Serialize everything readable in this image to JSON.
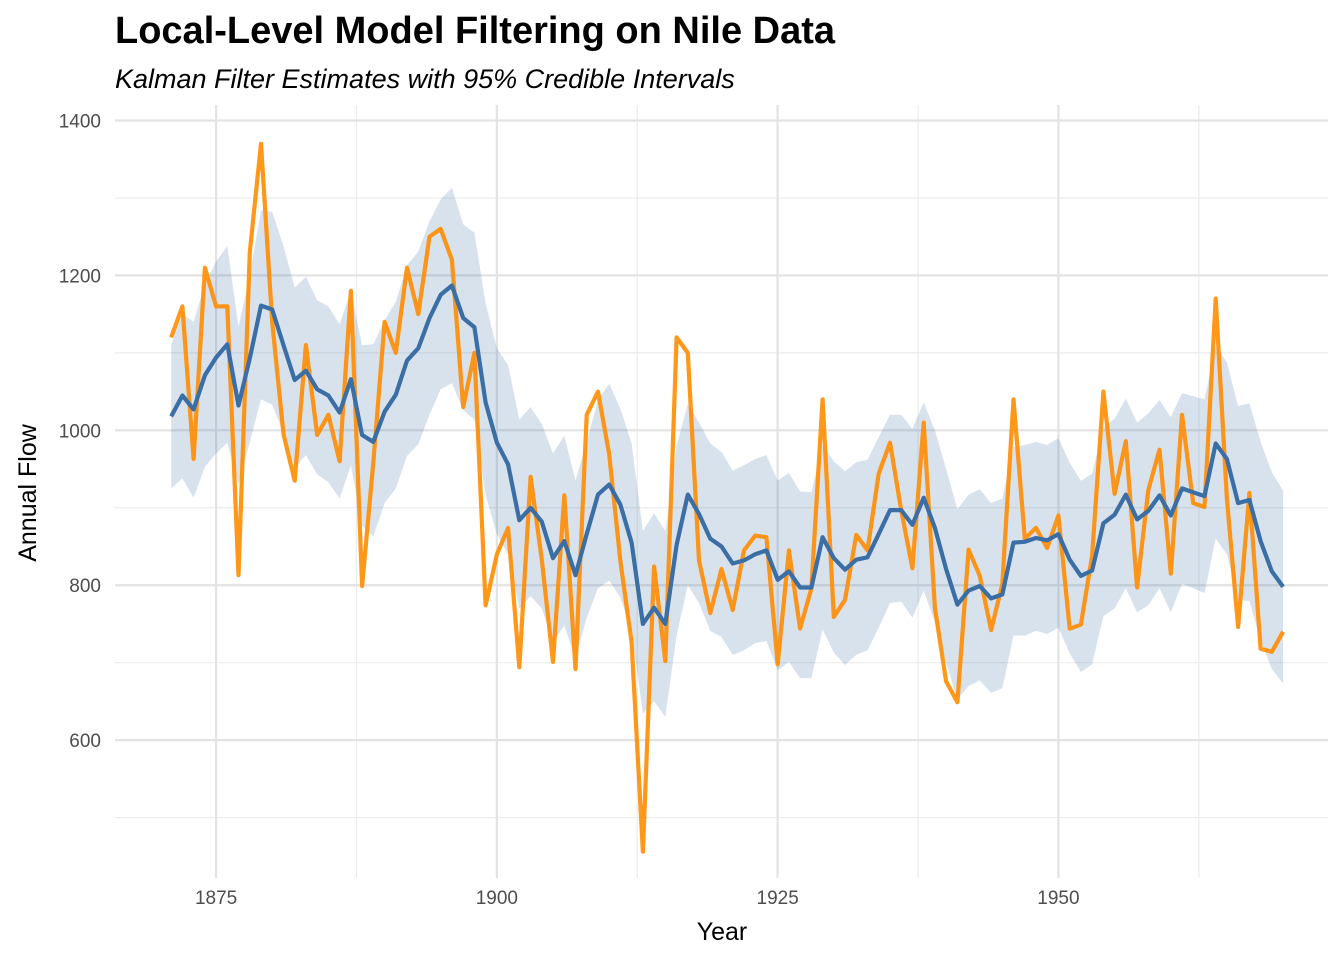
{
  "chart_data": {
    "type": "line",
    "title": "Local-Level Model Filtering on Nile Data",
    "subtitle": "Kalman Filter Estimates with 95% Credible Intervals",
    "xlabel": "Year",
    "ylabel": "Annual Flow",
    "xlim": [
      1866,
      1974
    ],
    "ylim": [
      422,
      1420
    ],
    "x_ticks": [
      1875,
      1900,
      1925,
      1950
    ],
    "y_ticks": [
      600,
      800,
      1000,
      1200,
      1400
    ],
    "grid": true,
    "x": [
      1871,
      1872,
      1873,
      1874,
      1875,
      1876,
      1877,
      1878,
      1879,
      1880,
      1881,
      1882,
      1883,
      1884,
      1885,
      1886,
      1887,
      1888,
      1889,
      1890,
      1891,
      1892,
      1893,
      1894,
      1895,
      1896,
      1897,
      1898,
      1899,
      1900,
      1901,
      1902,
      1903,
      1904,
      1905,
      1906,
      1907,
      1908,
      1909,
      1910,
      1911,
      1912,
      1913,
      1914,
      1915,
      1916,
      1917,
      1918,
      1919,
      1920,
      1921,
      1922,
      1923,
      1924,
      1925,
      1926,
      1927,
      1928,
      1929,
      1930,
      1931,
      1932,
      1933,
      1934,
      1935,
      1936,
      1937,
      1938,
      1939,
      1940,
      1941,
      1942,
      1943,
      1944,
      1945,
      1946,
      1947,
      1948,
      1949,
      1950,
      1951,
      1952,
      1953,
      1954,
      1955,
      1956,
      1957,
      1958,
      1959,
      1960,
      1961,
      1962,
      1963,
      1964,
      1965,
      1966,
      1967,
      1968,
      1969,
      1970
    ],
    "series": [
      {
        "color": "#FF8C00",
        "values": [
          1120,
          1160,
          963,
          1210,
          1160,
          1160,
          813,
          1230,
          1370,
          1140,
          995,
          935,
          1110,
          994,
          1020,
          960,
          1180,
          799,
          958,
          1140,
          1100,
          1210,
          1150,
          1250,
          1260,
          1220,
          1030,
          1100,
          774,
          840,
          874,
          694,
          940,
          833,
          701,
          916,
          692,
          1020,
          1050,
          969,
          831,
          726,
          456,
          824,
          702,
          1120,
          1100,
          832,
          764,
          821,
          768,
          845,
          864,
          862,
          698,
          845,
          744,
          796,
          1040,
          759,
          781,
          865,
          845,
          944,
          984,
          897,
          822,
          1010,
          771,
          676,
          649,
          846,
          812,
          742,
          801,
          1040,
          860,
          874,
          848,
          890,
          744,
          749,
          838,
          1050,
          918,
          986,
          797,
          923,
          975,
          815,
          1020,
          906,
          901,
          1170,
          912,
          746,
          919,
          718,
          714,
          740
        ]
      },
      {
        "color": "#3A6EA5",
        "values": [
          1018,
          1045,
          1027,
          1071,
          1094,
          1111,
          1032,
          1093,
          1161,
          1156,
          1110,
          1065,
          1077,
          1053,
          1045,
          1023,
          1066,
          994,
          985,
          1024,
          1046,
          1090,
          1106,
          1145,
          1175,
          1187,
          1145,
          1133,
          1036,
          984,
          956,
          884,
          900,
          882,
          835,
          857,
          813,
          866,
          917,
          930,
          904,
          855,
          750,
          771,
          750,
          852,
          917,
          892,
          860,
          850,
          828,
          832,
          840,
          845,
          807,
          818,
          797,
          797,
          862,
          835,
          820,
          833,
          836,
          866,
          897,
          897,
          878,
          913,
          874,
          821,
          775,
          793,
          799,
          783,
          788,
          855,
          856,
          861,
          858,
          866,
          833,
          812,
          819,
          880,
          891,
          917,
          885,
          896,
          916,
          890,
          925,
          920,
          915,
          983,
          963,
          906,
          910,
          857,
          818,
          798
        ]
      }
    ],
    "interval": {
      "lower": [
        925,
        938,
        913,
        953,
        970,
        984,
        930,
        985,
        1040,
        1033,
        997,
        952,
        968,
        943,
        933,
        912,
        955,
        877,
        863,
        906,
        925,
        967,
        982,
        1020,
        1053,
        1061,
        1026,
        1014,
        916,
        866,
        840,
        770,
        786,
        770,
        727,
        748,
        705,
        758,
        796,
        806,
        784,
        741,
        634,
        650,
        630,
        735,
        800,
        777,
        741,
        733,
        710,
        716,
        725,
        728,
        690,
        701,
        680,
        680,
        743,
        713,
        697,
        710,
        716,
        745,
        777,
        779,
        758,
        793,
        752,
        700,
        652,
        670,
        677,
        661,
        667,
        735,
        735,
        741,
        737,
        745,
        712,
        688,
        698,
        760,
        770,
        796,
        765,
        774,
        796,
        765,
        802,
        796,
        790,
        860,
        840,
        780,
        780,
        728,
        692,
        673
      ],
      "upper": [
        1110,
        1150,
        1140,
        1189,
        1218,
        1238,
        1134,
        1201,
        1284,
        1282,
        1238,
        1184,
        1198,
        1168,
        1160,
        1137,
        1180,
        1110,
        1111,
        1142,
        1166,
        1213,
        1231,
        1270,
        1298,
        1313,
        1266,
        1255,
        1164,
        1106,
        1084,
        1014,
        1030,
        1008,
        970,
        993,
        935,
        986,
        1039,
        1060,
        1028,
        983,
        870,
        893,
        870,
        980,
        1034,
        1010,
        983,
        972,
        948,
        955,
        963,
        968,
        935,
        945,
        921,
        920,
        982,
        960,
        947,
        959,
        962,
        991,
        1020,
        1020,
        1002,
        1036,
        1000,
        950,
        898,
        917,
        924,
        906,
        912,
        978,
        981,
        985,
        981,
        990,
        958,
        935,
        944,
        1004,
        1015,
        1041,
        1010,
        1022,
        1039,
        1017,
        1048,
        1044,
        1040,
        1108,
        1088,
        1031,
        1035,
        985,
        946,
        922
      ]
    }
  }
}
